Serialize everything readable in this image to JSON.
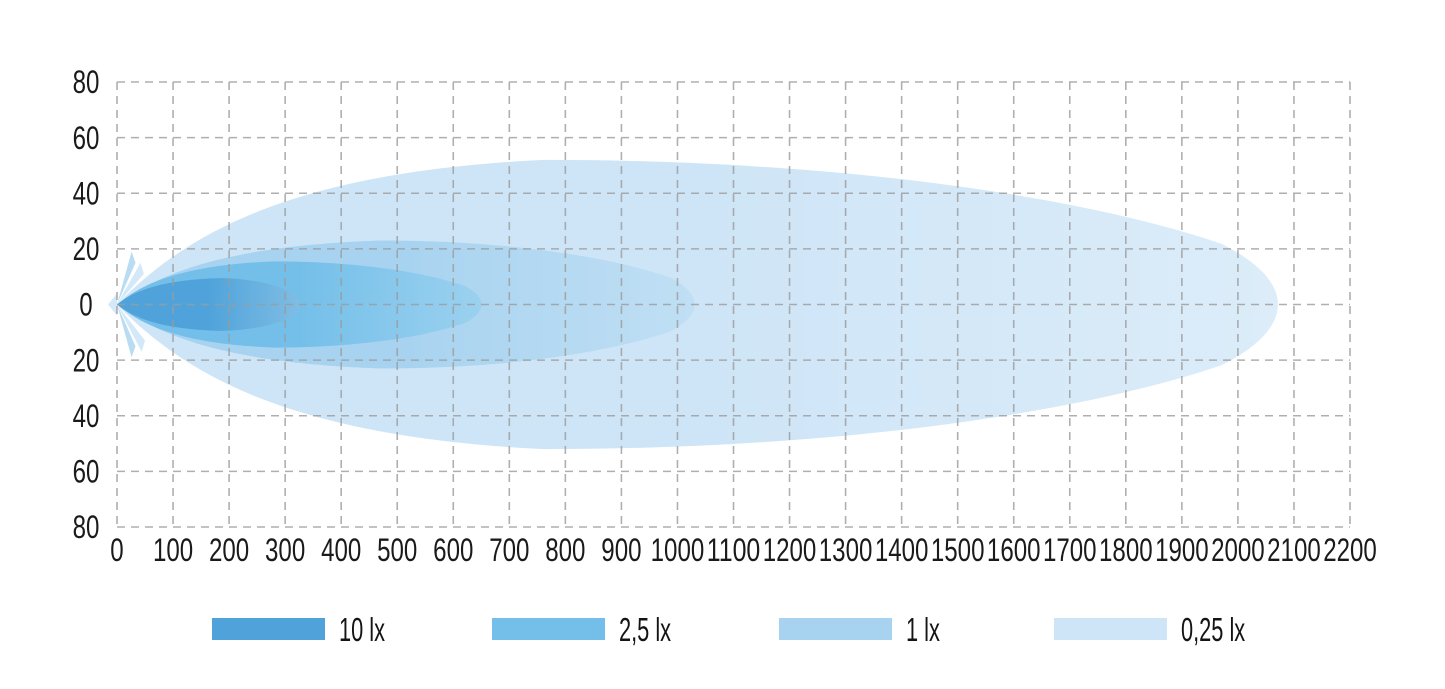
{
  "page": {
    "background": "#ffffff",
    "text_color": "#1a1a1a"
  },
  "chart_data": {
    "type": "area",
    "subtype": "isolux-beam-pattern",
    "title": "",
    "xlabel": "",
    "ylabel": "",
    "x_axis": {
      "min": 0,
      "max": 2200,
      "tick_step": 100,
      "tick_labels": [
        "0",
        "100",
        "200",
        "300",
        "400",
        "500",
        "600",
        "700",
        "800",
        "900",
        "1000",
        "1100",
        "1200",
        "1300",
        "1400",
        "1500",
        "1600",
        "1700",
        "1800",
        "1900",
        "2000",
        "2100",
        "2200"
      ]
    },
    "y_axis": {
      "min": -80,
      "max": 80,
      "tick_step": 20,
      "tick_values": [
        80,
        60,
        40,
        20,
        0,
        -20,
        -40,
        -60,
        -80
      ],
      "tick_labels": [
        "80",
        "60",
        "40",
        "20",
        "0",
        "20",
        "40",
        "60",
        "80"
      ]
    },
    "grid": {
      "style": "dashed",
      "color": "#9c9c9c"
    },
    "legend": {
      "position": "bottom"
    },
    "series": [
      {
        "label": "10 lx",
        "color": "#4fa3da",
        "reach": 330,
        "max_half_spread": 9.5,
        "peak_at": 180
      },
      {
        "label": "2,5 lx",
        "color": "#74bfe9",
        "reach": 660,
        "max_half_spread": 15.5,
        "peak_at": 280
      },
      {
        "label": "1 lx",
        "color": "#a8d3f0",
        "reach": 1045,
        "max_half_spread": 23,
        "peak_at": 470
      },
      {
        "label": "0,25 lx",
        "color": "#cee5f7",
        "reach": 2105,
        "max_half_spread": 52,
        "peak_at": 760
      }
    ]
  }
}
